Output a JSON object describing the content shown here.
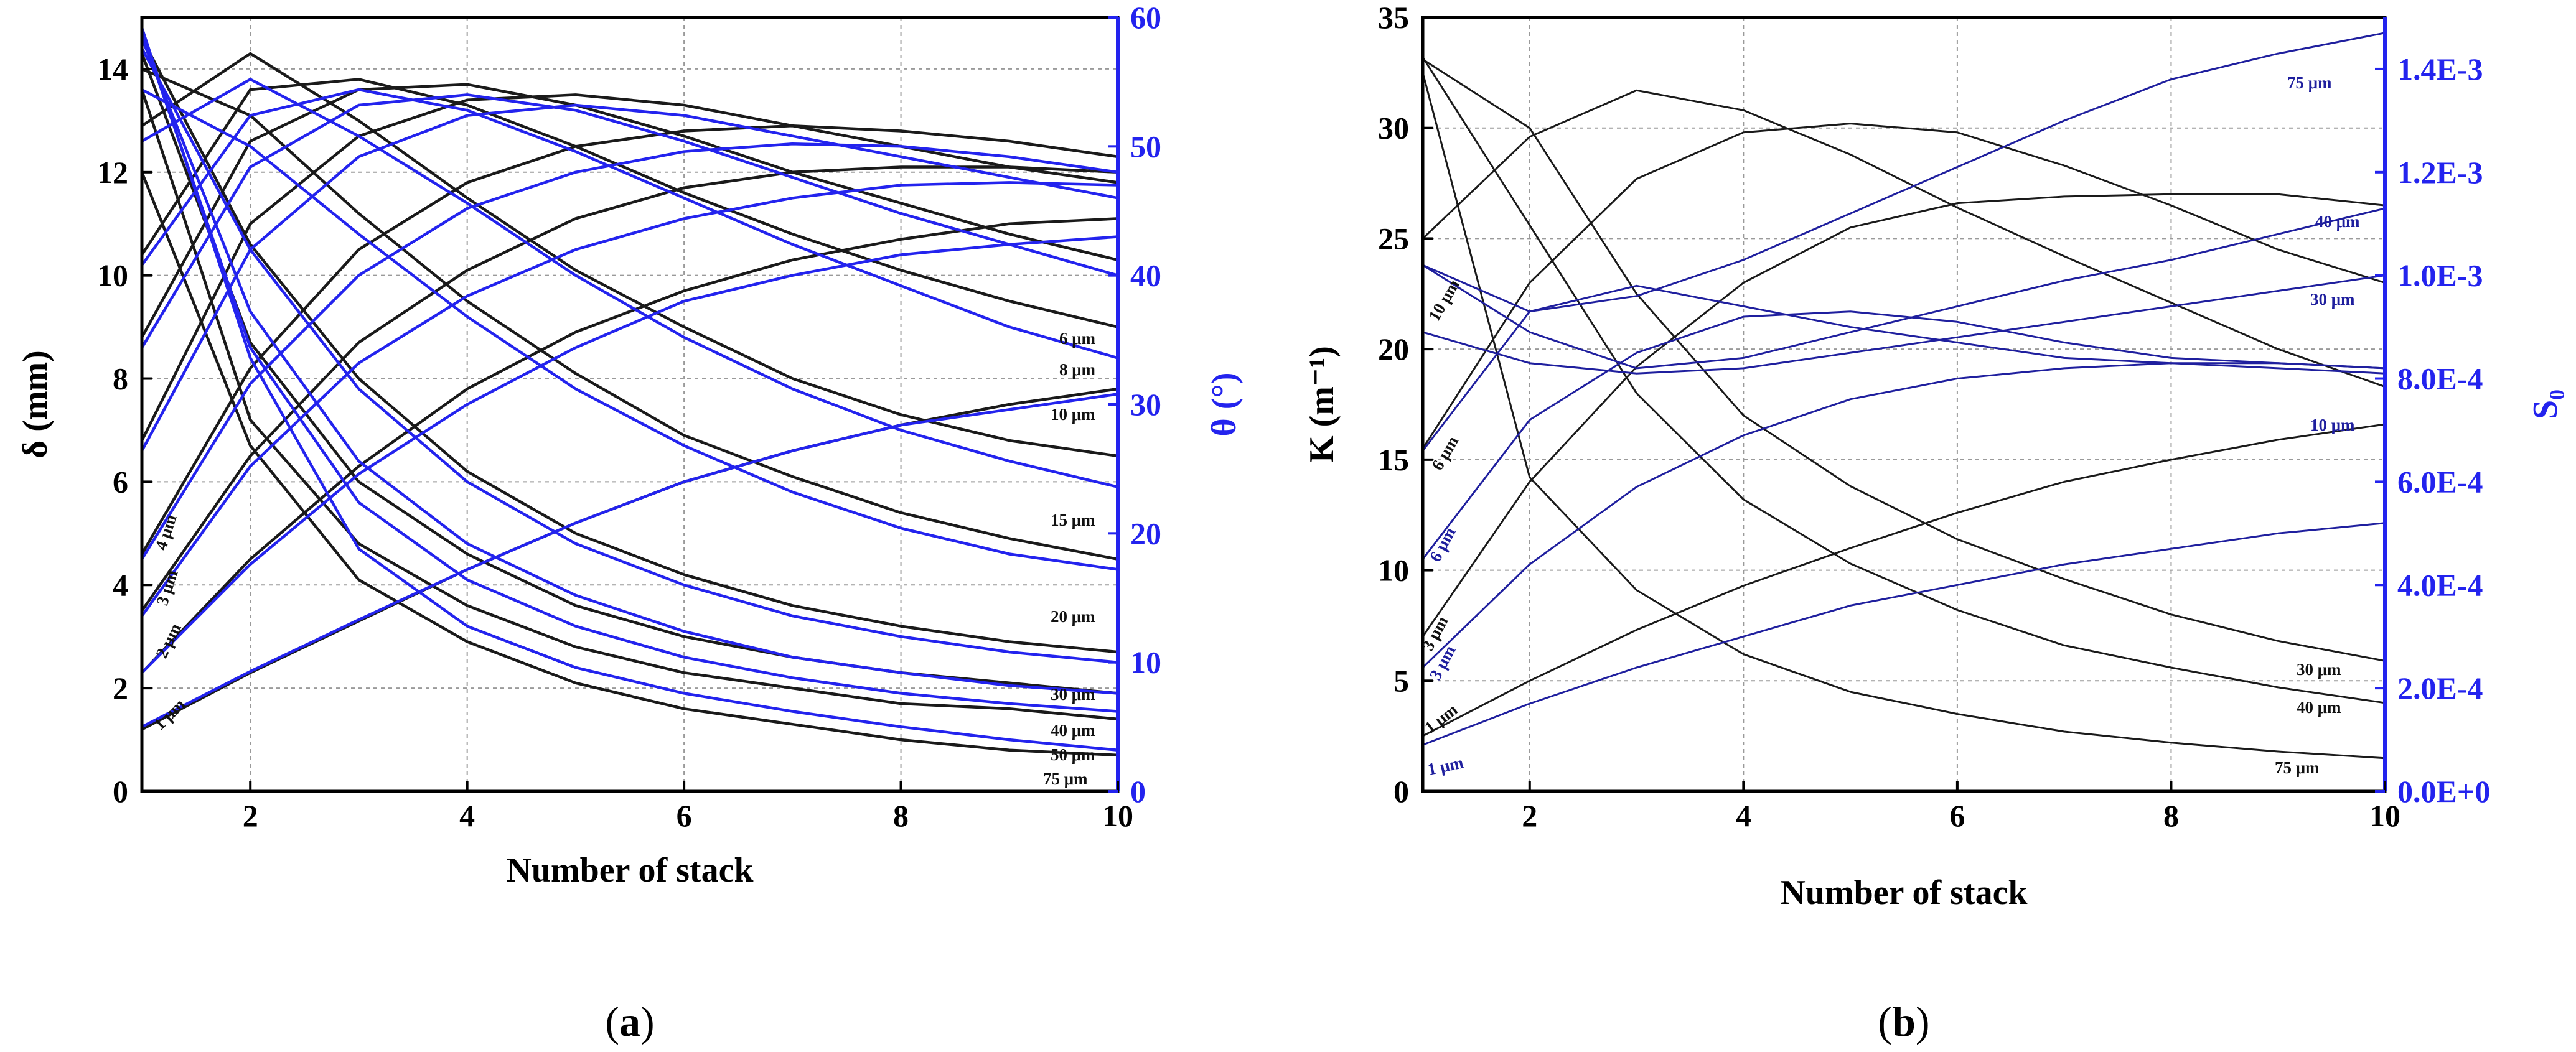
{
  "chart_data": [
    {
      "panel": "a",
      "type": "line",
      "panel_label": {
        "open": "(",
        "letter": "a",
        "close": ")"
      },
      "xlabel": "Number of stack",
      "ylabel": "δ (mm)",
      "ylabel_right": "θ (°)",
      "xlim": [
        1,
        10
      ],
      "ylim": [
        0,
        15
      ],
      "ylim_right": [
        0,
        60
      ],
      "xticks": [
        2,
        4,
        6,
        8,
        10
      ],
      "yticks": [
        0,
        2,
        4,
        6,
        8,
        10,
        12,
        14
      ],
      "yticks_right": [
        0,
        10,
        20,
        30,
        40,
        50,
        60
      ],
      "x": [
        1,
        2,
        3,
        4,
        5,
        6,
        7,
        8,
        9,
        10
      ],
      "colors": {
        "left": "#1a1a1a",
        "right": "#2323ee",
        "right_axis": "#2323ee"
      },
      "series_left": [
        {
          "name": "1 μm",
          "values": [
            1.2,
            2.3,
            3.3,
            4.3,
            5.2,
            6.0,
            6.6,
            7.1,
            7.5,
            7.8
          ]
        },
        {
          "name": "2 μm",
          "values": [
            2.3,
            4.5,
            6.3,
            7.8,
            8.9,
            9.7,
            10.3,
            10.7,
            11.0,
            11.1
          ]
        },
        {
          "name": "3 μm",
          "values": [
            3.5,
            6.5,
            8.7,
            10.1,
            11.1,
            11.7,
            12.0,
            12.1,
            12.1,
            12.0
          ]
        },
        {
          "name": "4 μm",
          "values": [
            4.6,
            8.2,
            10.5,
            11.8,
            12.5,
            12.8,
            12.9,
            12.8,
            12.6,
            12.3
          ]
        },
        {
          "name": "6 μm",
          "values": [
            6.8,
            11.0,
            12.7,
            13.4,
            13.5,
            13.3,
            12.9,
            12.5,
            12.1,
            11.8
          ]
        },
        {
          "name": "8 μm",
          "values": [
            8.8,
            12.6,
            13.6,
            13.7,
            13.3,
            12.7,
            12.0,
            11.4,
            10.8,
            10.3
          ]
        },
        {
          "name": "10 μm",
          "values": [
            10.4,
            13.6,
            13.8,
            13.3,
            12.5,
            11.6,
            10.8,
            10.1,
            9.5,
            9.0
          ]
        },
        {
          "name": "15 μm",
          "values": [
            12.9,
            14.3,
            13.0,
            11.5,
            10.1,
            9.0,
            8.0,
            7.3,
            6.8,
            6.5
          ]
        },
        {
          "name": "20 μm",
          "values": [
            14.0,
            13.1,
            11.2,
            9.5,
            8.1,
            6.9,
            6.1,
            5.4,
            4.9,
            4.5
          ]
        },
        {
          "name": "30 μm",
          "values": [
            14.6,
            10.6,
            8.0,
            6.2,
            5.0,
            4.2,
            3.6,
            3.2,
            2.9,
            2.7
          ]
        },
        {
          "name": "40 μm",
          "values": [
            14.3,
            8.7,
            6.0,
            4.6,
            3.6,
            3.0,
            2.6,
            2.3,
            2.1,
            1.9
          ]
        },
        {
          "name": "50 μm",
          "values": [
            13.6,
            7.2,
            4.8,
            3.6,
            2.8,
            2.3,
            2.0,
            1.7,
            1.6,
            1.4
          ]
        },
        {
          "name": "75 μm",
          "values": [
            12.0,
            6.7,
            4.1,
            2.9,
            2.1,
            1.6,
            1.3,
            1.0,
            0.8,
            0.7
          ]
        }
      ],
      "series_right": [
        {
          "name": "1 μm",
          "values": [
            5.0,
            9.3,
            13.3,
            17.2,
            20.8,
            24.0,
            26.4,
            28.4,
            29.6,
            30.8
          ]
        },
        {
          "name": "2 μm",
          "values": [
            9.2,
            17.6,
            24.6,
            30.0,
            34.4,
            38.0,
            40.0,
            41.6,
            42.4,
            43.0
          ]
        },
        {
          "name": "3 μm",
          "values": [
            13.6,
            25.2,
            33.2,
            38.4,
            42.0,
            44.4,
            46.0,
            47.0,
            47.2,
            47.0
          ]
        },
        {
          "name": "4 μm",
          "values": [
            18.0,
            31.6,
            40.0,
            45.2,
            48.0,
            49.6,
            50.2,
            50.0,
            49.2,
            48.0
          ]
        },
        {
          "name": "6 μm",
          "values": [
            26.4,
            42.0,
            49.2,
            52.4,
            53.2,
            52.4,
            50.8,
            49.2,
            47.6,
            46.0
          ]
        },
        {
          "name": "8 μm",
          "values": [
            34.4,
            48.4,
            53.2,
            54.0,
            52.8,
            50.4,
            47.6,
            44.8,
            42.4,
            40.0
          ]
        },
        {
          "name": "10 μm",
          "values": [
            40.8,
            52.4,
            54.4,
            52.8,
            49.6,
            46.0,
            42.4,
            39.2,
            36.0,
            33.6
          ]
        },
        {
          "name": "15 μm",
          "values": [
            50.4,
            55.2,
            50.8,
            45.6,
            40.0,
            35.2,
            31.2,
            28.0,
            25.6,
            23.6
          ]
        },
        {
          "name": "20 μm",
          "values": [
            54.4,
            50.0,
            43.2,
            36.8,
            31.2,
            26.8,
            23.2,
            20.4,
            18.4,
            17.2
          ]
        },
        {
          "name": "30 μm",
          "values": [
            57.6,
            42.0,
            31.2,
            24.0,
            19.2,
            16.0,
            13.6,
            12.0,
            10.8,
            10.0
          ]
        },
        {
          "name": "40 μm",
          "values": [
            58.4,
            37.2,
            25.6,
            19.2,
            15.2,
            12.4,
            10.4,
            9.2,
            8.2,
            7.6
          ]
        },
        {
          "name": "50 μm",
          "values": [
            58.8,
            34.4,
            22.4,
            16.4,
            12.8,
            10.4,
            8.8,
            7.6,
            6.8,
            6.2
          ]
        },
        {
          "name": "75 μm",
          "values": [
            59.2,
            33.6,
            18.8,
            12.8,
            9.6,
            7.6,
            6.2,
            5.0,
            4.0,
            3.2
          ]
        }
      ],
      "curve_labels": {
        "6um": "6 μm",
        "8um": "8 μm",
        "10um": "10 μm",
        "15um": "15 μm",
        "20um": "20 μm",
        "30um": "30 μm",
        "40um": "40 μm",
        "50um": "50 μm",
        "75um": "75 μm",
        "4um": "4 μm",
        "3um": "3 μm",
        "2um": "2 μm",
        "1um": "1 μm"
      }
    },
    {
      "panel": "b",
      "type": "line",
      "panel_label": {
        "open": "(",
        "letter": "b",
        "close": ")"
      },
      "xlabel": "Number of stack",
      "ylabel": "K (m⁻¹)",
      "ylabel_right": "S₀",
      "xlim": [
        1,
        10
      ],
      "ylim": [
        0,
        35
      ],
      "ylim_right": [
        0,
        0.0015
      ],
      "xticks": [
        2,
        4,
        6,
        8,
        10
      ],
      "yticks": [
        0,
        5,
        10,
        15,
        20,
        25,
        30,
        35
      ],
      "yticks_right_values": [
        0,
        0.0002,
        0.0004,
        0.0006,
        0.0008,
        0.001,
        0.0012,
        0.0014
      ],
      "yticks_right": [
        "0.0E+0",
        "2.0E-4",
        "4.0E-4",
        "6.0E-4",
        "8.0E-4",
        "1.0E-3",
        "1.2E-3",
        "1.4E-3"
      ],
      "x": [
        1,
        2,
        3,
        4,
        5,
        6,
        7,
        8,
        9,
        10
      ],
      "colors": {
        "left": "#1a1a1a",
        "right": "#1f1f9e",
        "right_axis": "#2323ee"
      },
      "series_left": [
        {
          "name": "1 μm",
          "values": [
            2.5,
            5.0,
            7.3,
            9.3,
            11.0,
            12.6,
            14.0,
            15.0,
            15.9,
            16.6
          ]
        },
        {
          "name": "3 μm",
          "values": [
            7.0,
            14.0,
            19.2,
            23.0,
            25.5,
            26.6,
            26.9,
            27.0,
            27.0,
            26.5
          ]
        },
        {
          "name": "6 μm",
          "values": [
            15.5,
            23.0,
            27.7,
            29.8,
            30.2,
            29.8,
            28.3,
            26.5,
            24.5,
            23.0
          ]
        },
        {
          "name": "10 μm",
          "values": [
            25.0,
            29.6,
            31.7,
            30.8,
            28.8,
            26.4,
            24.2,
            22.1,
            20.0,
            18.3
          ]
        },
        {
          "name": "30 μm",
          "values": [
            33.1,
            30.0,
            22.5,
            17.0,
            13.8,
            11.4,
            9.6,
            8.0,
            6.8,
            5.9
          ]
        },
        {
          "name": "40 μm",
          "values": [
            33.2,
            25.6,
            18.0,
            13.2,
            10.3,
            8.2,
            6.6,
            5.6,
            4.7,
            4.0
          ]
        },
        {
          "name": "75 μm",
          "values": [
            32.5,
            14.2,
            9.1,
            6.2,
            4.5,
            3.5,
            2.7,
            2.2,
            1.8,
            1.5
          ]
        }
      ],
      "series_right": [
        {
          "name": "1 μm",
          "values": [
            9e-05,
            0.00017,
            0.00024,
            0.0003,
            0.00036,
            0.0004,
            0.00044,
            0.00047,
            0.0005,
            0.00052
          ]
        },
        {
          "name": "3 μm",
          "values": [
            0.00024,
            0.00044,
            0.00059,
            0.00069,
            0.00076,
            0.0008,
            0.00082,
            0.00083,
            0.00083,
            0.00082
          ]
        },
        {
          "name": "6 μm",
          "values": [
            0.00045,
            0.00072,
            0.00085,
            0.00092,
            0.00093,
            0.00091,
            0.00087,
            0.00084,
            0.00083,
            0.00082
          ]
        },
        {
          "name": "10 μm",
          "values": [
            0.00066,
            0.00093,
            0.00098,
            0.00094,
            0.0009,
            0.00087,
            0.00084,
            0.00083,
            0.00082,
            0.00081
          ]
        },
        {
          "name": "30 μm",
          "values": [
            0.00089,
            0.00083,
            0.00081,
            0.00082,
            0.00085,
            0.00088,
            0.00091,
            0.00094,
            0.00097,
            0.001
          ]
        },
        {
          "name": "40 μm",
          "values": [
            0.00102,
            0.00089,
            0.00082,
            0.00084,
            0.00089,
            0.00094,
            0.00099,
            0.00103,
            0.00108,
            0.00113
          ]
        },
        {
          "name": "75 μm",
          "values": [
            0.00102,
            0.00093,
            0.00096,
            0.00103,
            0.00112,
            0.00121,
            0.0013,
            0.00138,
            0.00143,
            0.00147
          ]
        }
      ],
      "curve_labels": {
        "10um_left": "10 μm",
        "6um_left": "6 μm",
        "3um_left": "3 μm",
        "1um_left": "1 μm",
        "6um_right": "6 μm",
        "3um_right": "3 μm",
        "1um_right": "1 μm",
        "75um_right": "75 μm",
        "40um_right": "40 μm",
        "30um_right": "30 μm",
        "10um_right": "10 μm",
        "30um_left": "30 μm",
        "40um_left": "40 μm",
        "75um_left": "75 μm"
      }
    }
  ]
}
